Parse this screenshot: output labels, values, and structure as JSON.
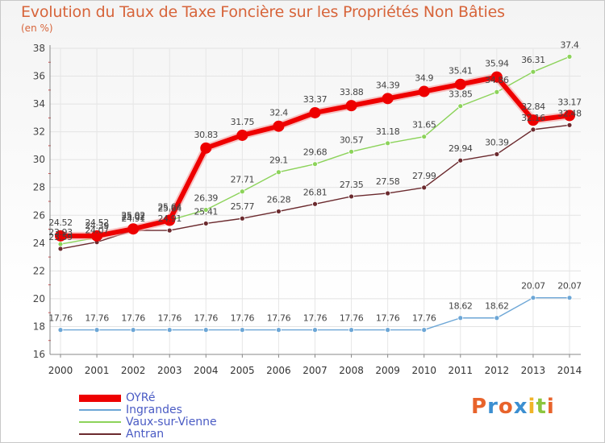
{
  "title": "Evolution du Taux de Taxe Foncière sur les Propriétés Non Bâties",
  "subtitle": "(en %)",
  "logo": {
    "letters": [
      "P",
      "r",
      "o",
      "x",
      "i",
      "t",
      "i"
    ],
    "colors": [
      "#e8632b",
      "#3c8fd1",
      "#e8632b",
      "#3c8fd1",
      "#f0b428",
      "#8cc63e",
      "#e8632b"
    ]
  },
  "chart_data": {
    "type": "line",
    "title": "Evolution du Taux de Taxe Foncière sur les Propriétés Non Bâties",
    "ylabel": "(en %)",
    "xlabel": "",
    "ylim": [
      16,
      38
    ],
    "yticks": [
      16,
      18,
      20,
      22,
      24,
      26,
      28,
      30,
      32,
      34,
      36,
      38
    ],
    "categories": [
      "2000",
      "2001",
      "2002",
      "2003",
      "2004",
      "2005",
      "2006",
      "2007",
      "2008",
      "2009",
      "2010",
      "2011",
      "2012",
      "2013",
      "2014"
    ],
    "series": [
      {
        "name": "Ingrandes",
        "color": "#6ca6d6",
        "values": [
          17.76,
          17.76,
          17.76,
          17.76,
          17.76,
          17.76,
          17.76,
          17.76,
          17.76,
          17.76,
          17.76,
          18.62,
          18.62,
          20.07,
          20.07
        ],
        "labels": [
          "17.76",
          "17.76",
          "17.76",
          "17.76",
          "17.76",
          "17.76",
          "17.76",
          "17.76",
          "17.76",
          "17.76",
          "17.76",
          "18.62",
          "18.62",
          "20.07",
          "20.07"
        ]
      },
      {
        "name": "Antran",
        "color": "#6b2a2e",
        "values": [
          23.59,
          24.07,
          24.91,
          24.91,
          25.41,
          25.77,
          26.28,
          26.81,
          27.35,
          27.58,
          27.99,
          29.94,
          30.39,
          32.16,
          32.48
        ],
        "labels": [
          "23.59",
          "24.07",
          "24.91",
          "24.91",
          "25.41",
          "25.77",
          "26.28",
          "26.81",
          "27.35",
          "27.58",
          "27.99",
          "29.94",
          "30.39",
          "32.16",
          "32.48"
        ]
      },
      {
        "name": "Vaux-sur-Vienne",
        "color": "#8cd35a",
        "values": [
          23.93,
          24.39,
          25.02,
          25.64,
          26.39,
          27.71,
          29.1,
          29.68,
          30.57,
          31.18,
          31.65,
          33.85,
          34.86,
          36.31,
          37.4
        ],
        "labels": [
          "23.93",
          "24.39",
          "25.02",
          "25.64",
          "26.39",
          "27.71",
          "29.1",
          "29.68",
          "30.57",
          "31.18",
          "31.65",
          "33.85",
          "34.86",
          "36.31",
          "37.4"
        ]
      },
      {
        "name": "OYRé",
        "color": "#ee0000",
        "values": [
          24.52,
          24.52,
          25.02,
          25.64,
          30.83,
          31.75,
          32.4,
          33.37,
          33.88,
          34.39,
          34.9,
          35.41,
          35.94,
          32.84,
          33.17
        ],
        "labels": [
          "24.52",
          "24.52",
          "25.02",
          "25.64",
          "30.83",
          "31.75",
          "32.4",
          "33.37",
          "33.88",
          "34.39",
          "34.9",
          "35.41",
          "35.94",
          "32.84",
          "33.17"
        ]
      }
    ],
    "legend": {
      "position": "bottom-left",
      "items": [
        {
          "name": "OYRé",
          "color": "#ee0000",
          "weight": 9
        },
        {
          "name": "Ingrandes",
          "color": "#6ca6d6",
          "weight": 2
        },
        {
          "name": "Vaux-sur-Vienne",
          "color": "#8cd35a",
          "weight": 2
        },
        {
          "name": "Antran",
          "color": "#6b2a2e",
          "weight": 2
        }
      ]
    }
  }
}
